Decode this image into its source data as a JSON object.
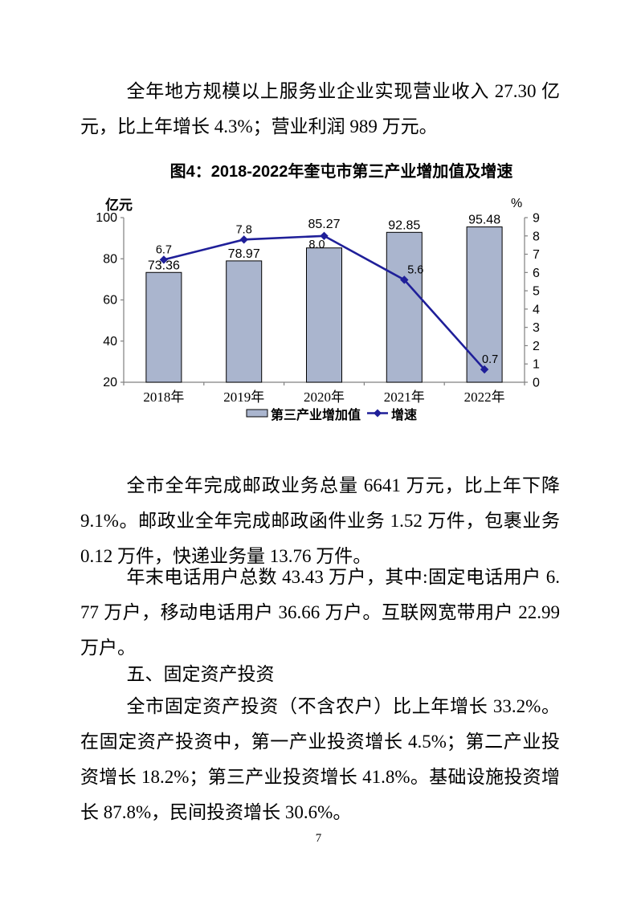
{
  "page": {
    "number": "7"
  },
  "paragraphs": {
    "service_revenue": "全年地方规模以上服务业企业实现营业收入 27.30 亿元，比上年增长 4.3%；营业利润 989 万元。",
    "postal": "全市全年完成邮政业务总量 6641 万元，比上年下降 9.1%。邮政业全年完成邮政函件业务 1.52 万件，包裹业务 0.12 万件，快递业务量 13.76 万件。",
    "telephone": "年末电话用户总数 43.43 万户，其中:固定电话用户 6.77 万户，移动电话用户 36.66 万户。互联网宽带用户 22.99 万户。",
    "section_heading": "五、固定资产投资",
    "investment": "全市固定资产投资（不含农户）比上年增长 33.2%。在固定资产投资中，第一产业投资增长 4.5%；第二产业投资增长 18.2%；第三产业投资增长 41.8%。基础设施投资增长 87.8%，民间投资增长 30.6%。"
  },
  "chart_data": {
    "type": "bar",
    "combo": "bar+line",
    "title": "图4：2018-2022年奎屯市第三产业增加值及增速",
    "categories": [
      "2018年",
      "2019年",
      "2020年",
      "2021年",
      "2022年"
    ],
    "series": [
      {
        "name": "第三产业增加值",
        "type": "bar",
        "axis": "left",
        "values": [
          73.36,
          78.97,
          85.27,
          92.85,
          95.48
        ]
      },
      {
        "name": "增速",
        "type": "line",
        "axis": "right",
        "values": [
          6.7,
          7.8,
          8.0,
          5.6,
          0.7
        ]
      }
    ],
    "left_axis": {
      "label": "亿元",
      "min": 20,
      "max": 100,
      "ticks": [
        100,
        80,
        60,
        40,
        20
      ]
    },
    "right_axis": {
      "label": "%",
      "min": 0,
      "max": 9,
      "ticks": [
        9,
        8,
        7,
        6,
        5,
        4,
        3,
        2,
        1,
        0
      ]
    },
    "grid": false,
    "legend_position": "bottom",
    "colors": {
      "bar_fill": "#aab5ce",
      "bar_stroke": "#000000",
      "line": "#1f1f99",
      "axis": "#808080",
      "text": "#000000"
    }
  }
}
